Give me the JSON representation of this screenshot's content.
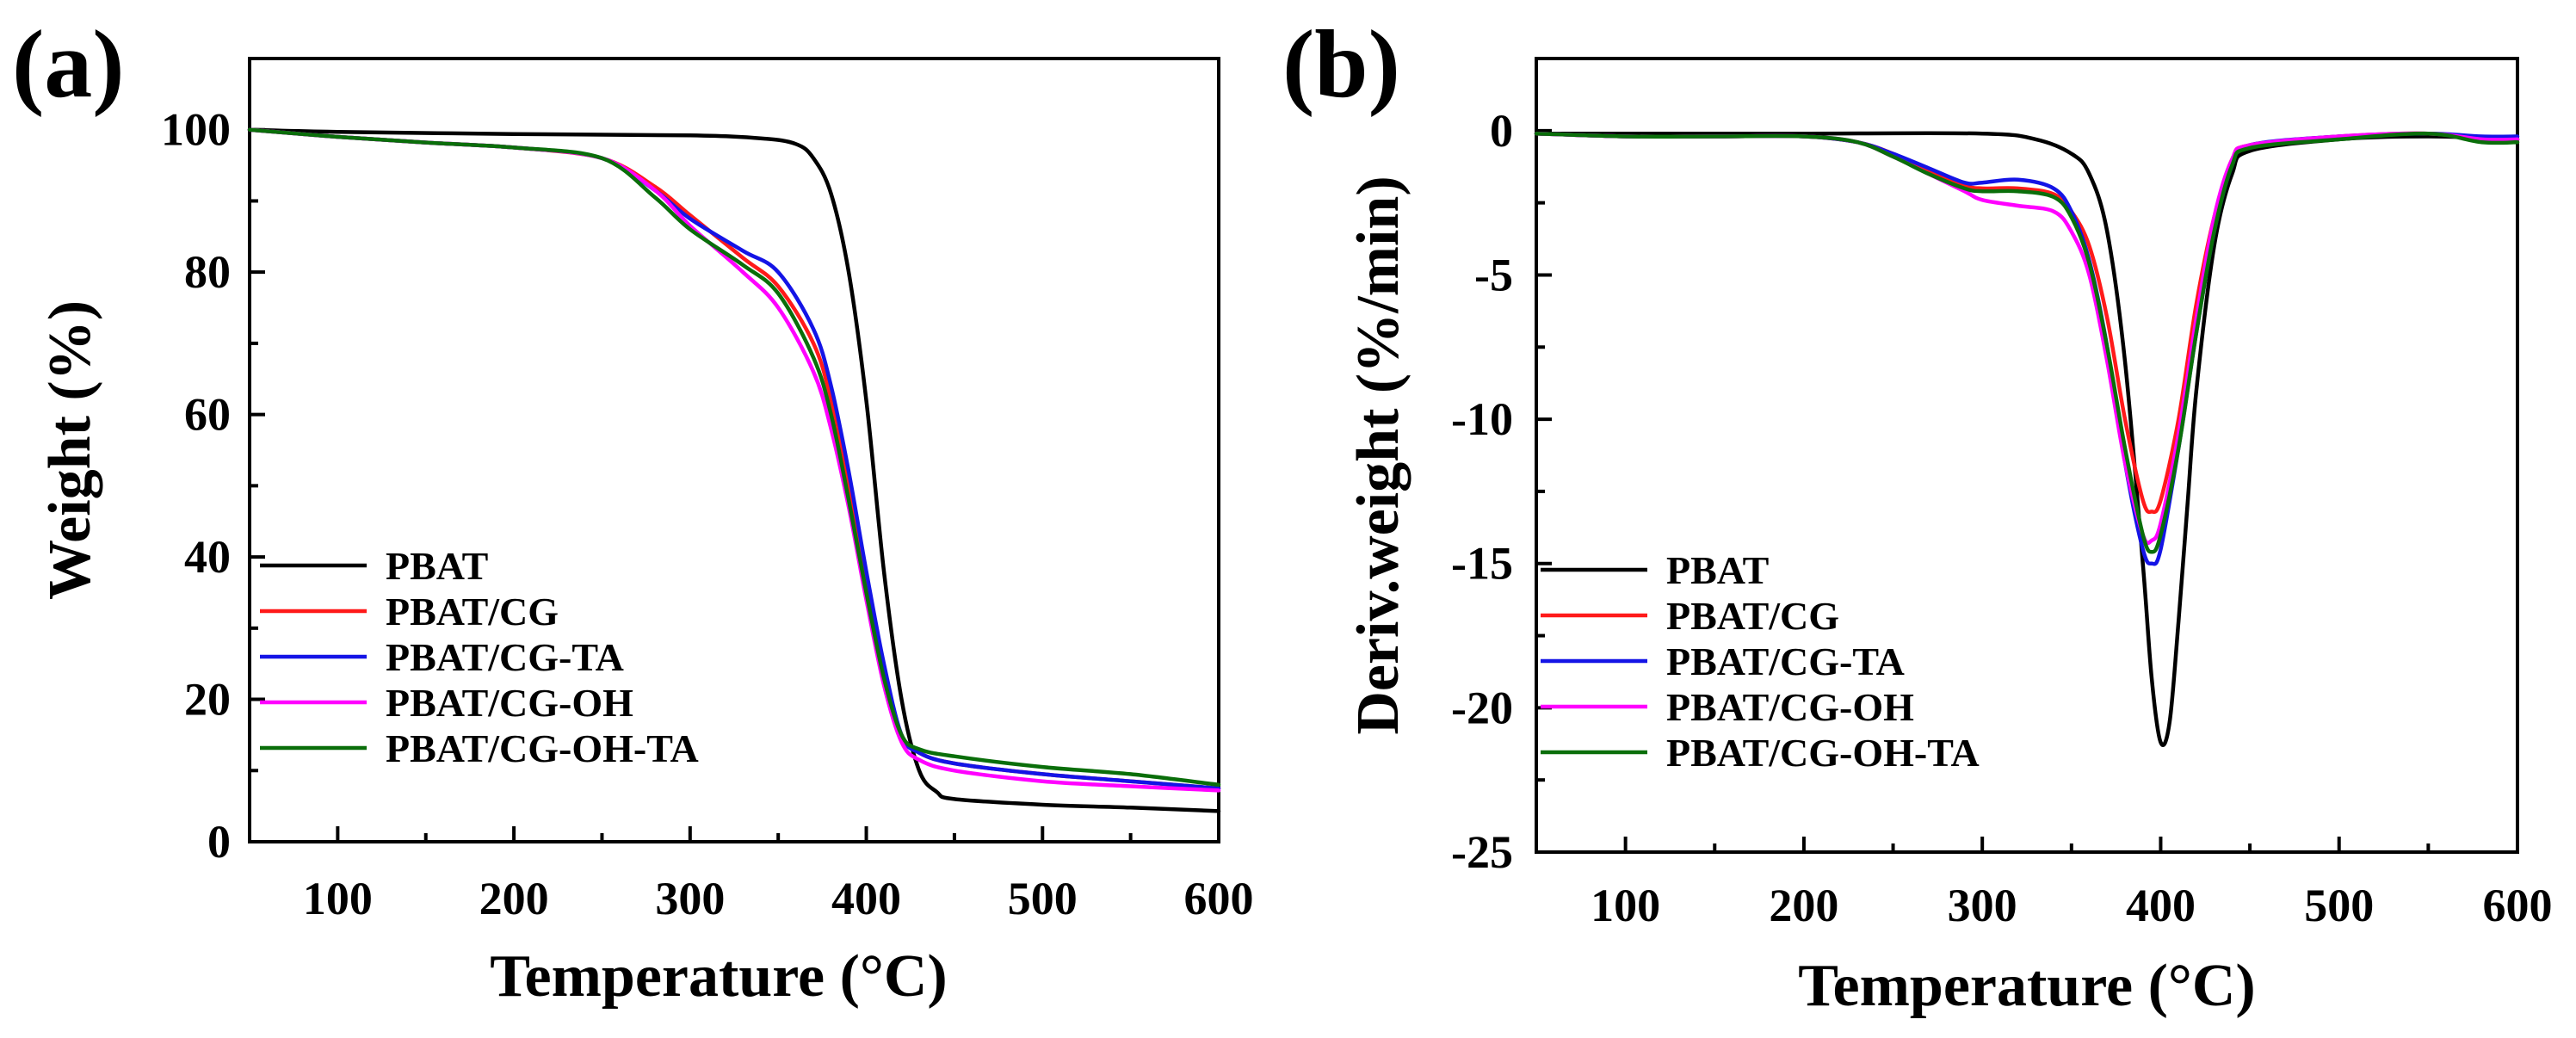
{
  "figure": {
    "caption_labels": [
      "(a)",
      "(b)"
    ]
  },
  "series_colors": {
    "PBAT": "#000000",
    "PBAT/CG": "#ff1a1a",
    "PBAT/CG-TA": "#1414e6",
    "PBAT/CG-OH": "#ff00ff",
    "PBAT/CG-OH-TA": "#0a6e0a"
  },
  "chart_data": [
    {
      "id": "a",
      "panel_label": "(a)",
      "type": "line",
      "title": "",
      "xlabel": "Temperature (°C)",
      "ylabel": "Weight (%)",
      "xlim": [
        50,
        600
      ],
      "ylim": [
        0,
        110
      ],
      "xticks": [
        100,
        200,
        300,
        400,
        500,
        600
      ],
      "yticks": [
        0,
        20,
        40,
        60,
        80,
        100
      ],
      "xtick_labels": [
        "100",
        "200",
        "300",
        "400",
        "500",
        "600"
      ],
      "ytick_labels": [
        "0",
        "20",
        "40",
        "60",
        "80",
        "100"
      ],
      "legend_position": "bottom-left",
      "series": [
        {
          "name": "PBAT",
          "x": [
            50,
            100,
            200,
            300,
            340,
            360,
            370,
            380,
            390,
            400,
            410,
            420,
            430,
            440,
            450,
            500,
            550,
            600
          ],
          "y": [
            100,
            99.7,
            99.4,
            99.2,
            98.8,
            98,
            96,
            91,
            80,
            62,
            38,
            20,
            10,
            7,
            6,
            5.2,
            4.8,
            4.3
          ]
        },
        {
          "name": "PBAT/CG",
          "x": [
            50,
            100,
            150,
            200,
            250,
            280,
            300,
            330,
            350,
            370,
            380,
            390,
            400,
            410,
            420,
            430,
            450,
            500,
            550,
            600
          ],
          "y": [
            100,
            99,
            98.2,
            97.5,
            96,
            92,
            88,
            82,
            78,
            70,
            62,
            50,
            36,
            24,
            15,
            12.5,
            11,
            9.5,
            8.5,
            7.5
          ]
        },
        {
          "name": "PBAT/CG-TA",
          "x": [
            50,
            100,
            150,
            200,
            250,
            280,
            300,
            330,
            350,
            370,
            380,
            390,
            400,
            410,
            420,
            430,
            450,
            500,
            550,
            600
          ],
          "y": [
            100,
            99,
            98.2,
            97.5,
            96,
            91.5,
            87.5,
            83,
            80,
            72,
            64,
            52,
            38,
            25,
            15,
            12.5,
            11,
            9.5,
            8.5,
            7.5
          ]
        },
        {
          "name": "PBAT/CG-OH",
          "x": [
            50,
            100,
            150,
            200,
            250,
            280,
            300,
            330,
            350,
            370,
            380,
            390,
            400,
            410,
            420,
            430,
            450,
            500,
            550,
            600
          ],
          "y": [
            100,
            99,
            98.2,
            97.5,
            96,
            91.5,
            86.5,
            80,
            75,
            66,
            58,
            47,
            34,
            22,
            14,
            11.5,
            10,
            8.5,
            7.8,
            7.2
          ]
        },
        {
          "name": "PBAT/CG-OH-TA",
          "x": [
            50,
            100,
            150,
            200,
            250,
            280,
            300,
            330,
            350,
            370,
            380,
            390,
            400,
            410,
            420,
            430,
            450,
            500,
            550,
            600
          ],
          "y": [
            100,
            99,
            98.2,
            97.5,
            96,
            90.5,
            86,
            81,
            77,
            68,
            60,
            48,
            35,
            23,
            15,
            13,
            12,
            10.5,
            9.5,
            8
          ]
        }
      ]
    },
    {
      "id": "b",
      "panel_label": "(b)",
      "type": "line",
      "title": "",
      "xlabel": "Temperature (°C)",
      "ylabel": "Deriv.weight (%/min)",
      "xlim": [
        50,
        600
      ],
      "ylim": [
        -25,
        2.5
      ],
      "xticks": [
        100,
        200,
        300,
        400,
        500,
        600
      ],
      "yticks": [
        -25,
        -20,
        -15,
        -10,
        -5,
        0
      ],
      "xtick_labels": [
        "100",
        "200",
        "300",
        "400",
        "500",
        "600"
      ],
      "ytick_labels": [
        "-25",
        "-20",
        "-15",
        "-10",
        "-5",
        "0"
      ],
      "legend_position": "bottom-left",
      "series": [
        {
          "name": "PBAT",
          "x": [
            50,
            100,
            200,
            300,
            330,
            350,
            360,
            370,
            380,
            390,
            395,
            400,
            405,
            410,
            415,
            420,
            430,
            440,
            450,
            500,
            550,
            600
          ],
          "y": [
            -0.1,
            -0.1,
            -0.1,
            -0.1,
            -0.3,
            -0.8,
            -1.5,
            -3.5,
            -8,
            -15,
            -19,
            -21.2,
            -20.5,
            -17,
            -13,
            -9,
            -4,
            -1.5,
            -0.7,
            -0.3,
            -0.2,
            -0.3
          ]
        },
        {
          "name": "PBAT/CG",
          "x": [
            50,
            100,
            150,
            200,
            230,
            250,
            270,
            290,
            300,
            320,
            340,
            350,
            360,
            370,
            380,
            390,
            395,
            400,
            410,
            420,
            430,
            440,
            450,
            500,
            550,
            580,
            600
          ],
          "y": [
            -0.1,
            -0.2,
            -0.2,
            -0.2,
            -0.4,
            -0.8,
            -1.4,
            -1.9,
            -2,
            -2,
            -2.2,
            -2.8,
            -4,
            -6.5,
            -10,
            -12.8,
            -13.2,
            -12.8,
            -10,
            -6,
            -3,
            -1,
            -0.5,
            -0.2,
            -0.1,
            -0.3,
            -0.3
          ]
        },
        {
          "name": "PBAT/CG-TA",
          "x": [
            50,
            100,
            150,
            200,
            230,
            250,
            270,
            290,
            300,
            320,
            340,
            350,
            360,
            370,
            380,
            390,
            395,
            400,
            410,
            420,
            430,
            440,
            450,
            500,
            550,
            580,
            600
          ],
          "y": [
            -0.1,
            -0.2,
            -0.2,
            -0.2,
            -0.4,
            -0.8,
            -1.3,
            -1.8,
            -1.8,
            -1.7,
            -2,
            -2.8,
            -4.5,
            -7.5,
            -11.5,
            -14.5,
            -15,
            -14.5,
            -11,
            -7,
            -3.5,
            -1.2,
            -0.5,
            -0.2,
            -0.1,
            -0.2,
            -0.2
          ]
        },
        {
          "name": "PBAT/CG-OH",
          "x": [
            50,
            100,
            150,
            200,
            230,
            250,
            270,
            290,
            300,
            320,
            340,
            350,
            360,
            370,
            380,
            390,
            395,
            400,
            410,
            420,
            430,
            440,
            450,
            500,
            550,
            580,
            600
          ],
          "y": [
            -0.1,
            -0.2,
            -0.2,
            -0.2,
            -0.4,
            -0.9,
            -1.5,
            -2.1,
            -2.4,
            -2.6,
            -2.8,
            -3.5,
            -5,
            -8,
            -11.5,
            -14,
            -14.2,
            -13.6,
            -10.5,
            -6.5,
            -3,
            -1,
            -0.5,
            -0.2,
            -0.1,
            -0.3,
            -0.3
          ]
        },
        {
          "name": "PBAT/CG-OH-TA",
          "x": [
            50,
            100,
            150,
            200,
            230,
            250,
            270,
            290,
            300,
            320,
            340,
            350,
            360,
            370,
            380,
            390,
            395,
            400,
            410,
            420,
            430,
            440,
            450,
            500,
            550,
            580,
            600
          ],
          "y": [
            -0.1,
            -0.2,
            -0.2,
            -0.2,
            -0.4,
            -0.9,
            -1.5,
            -2,
            -2.1,
            -2.1,
            -2.3,
            -3,
            -4.6,
            -7.5,
            -11,
            -14,
            -14.6,
            -14,
            -11,
            -7,
            -3.5,
            -1.2,
            -0.6,
            -0.3,
            -0.1,
            -0.4,
            -0.4
          ]
        }
      ]
    }
  ]
}
